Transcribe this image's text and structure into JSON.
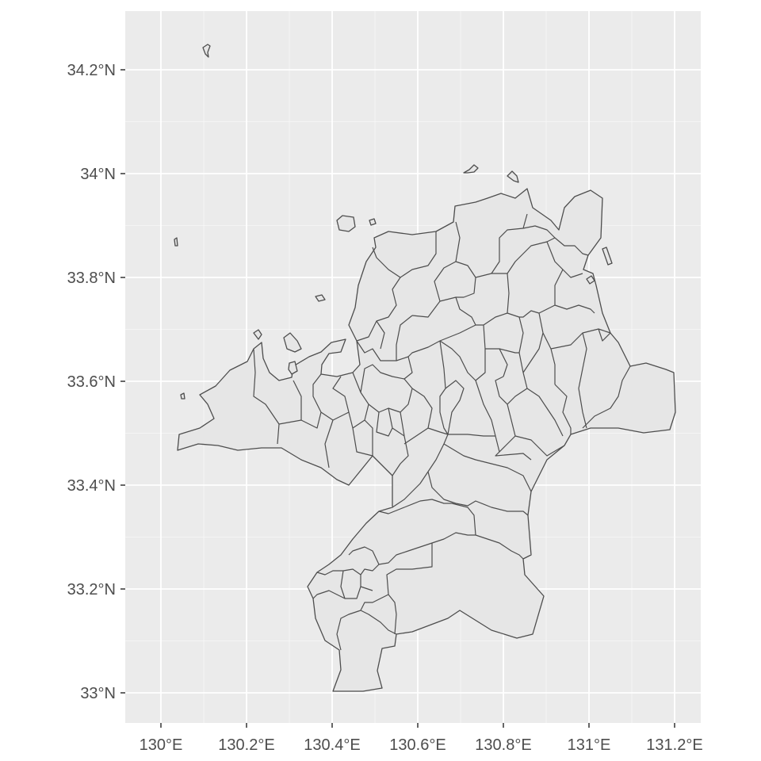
{
  "chart_data": {
    "type": "map",
    "title": "",
    "xlabel": "",
    "ylabel": "",
    "xlim": [
      129.92,
      131.26
    ],
    "ylim": [
      32.94,
      34.34
    ],
    "grid": true,
    "legend": "none",
    "x_ticks": [
      {
        "value": 130.0,
        "label": "130°E"
      },
      {
        "value": 130.2,
        "label": "130.2°E"
      },
      {
        "value": 130.4,
        "label": "130.4°E"
      },
      {
        "value": 130.6,
        "label": "130.6°E"
      },
      {
        "value": 130.8,
        "label": "130.8°E"
      },
      {
        "value": 131.0,
        "label": "131°E"
      },
      {
        "value": 131.2,
        "label": "131.2°E"
      }
    ],
    "y_ticks": [
      {
        "value": 33.0,
        "label": "33°N"
      },
      {
        "value": 33.2,
        "label": "33.2°N"
      },
      {
        "value": 33.4,
        "label": "33.4°N"
      },
      {
        "value": 33.6,
        "label": "33.6°N"
      },
      {
        "value": 33.8,
        "label": "33.8°N"
      },
      {
        "value": 34.0,
        "label": "34°N"
      },
      {
        "value": 34.2,
        "label": "34.2°N"
      }
    ],
    "colors": {
      "panel": "#ebebeb",
      "grid": "#ffffff",
      "fill": "#e6e6e6",
      "stroke": "#4d4d4d",
      "text": "#4d4d4d"
    }
  }
}
